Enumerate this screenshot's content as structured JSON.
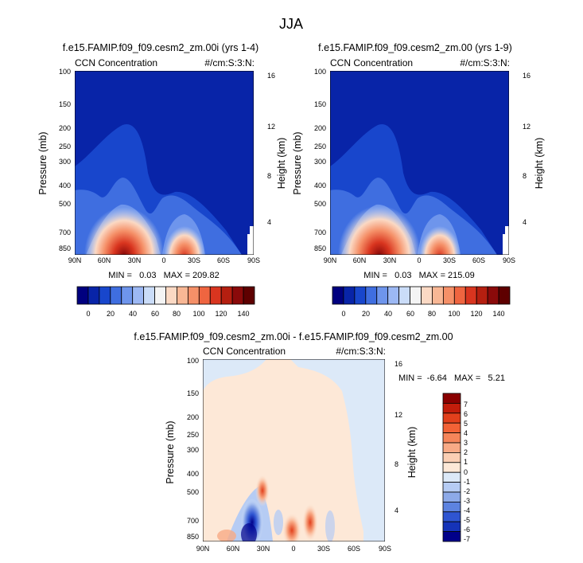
{
  "page_title": "JJA",
  "chart_data": [
    {
      "type": "heatmap",
      "title": "f.e15.FAMIP.f09_f09.cesm2_zm.00i (yrs 1-4)",
      "left_label": "CCN Concentration",
      "right_label": "#/cm:S:3:N:",
      "xlabel": "",
      "ylabel": "Pressure (mb)",
      "ylabel_right": "Height (km)",
      "x_ticks": [
        "90N",
        "60N",
        "30N",
        "0",
        "30S",
        "60S",
        "90S"
      ],
      "y_ticks": [
        "100",
        "150",
        "200",
        "250",
        "300",
        "400",
        "500",
        "700",
        "850"
      ],
      "y_ticks_right": [
        "16",
        "12",
        "8",
        "4"
      ],
      "xlim": [
        90,
        -90
      ],
      "ylim": [
        1000,
        100
      ],
      "y_scale": "log",
      "stats": "MIN =   0.03   MAX = 209.82",
      "colorbar_labels": [
        "0",
        "20",
        "40",
        "60",
        "80",
        "100",
        "120",
        "140"
      ],
      "colorbar_orientation": "horizontal"
    },
    {
      "type": "heatmap",
      "title": "f.e15.FAMIP.f09_f09.cesm2_zm.00 (yrs 1-9)",
      "left_label": "CCN Concentration",
      "right_label": "#/cm:S:3:N:",
      "xlabel": "",
      "ylabel": "Pressure (mb)",
      "ylabel_right": "Height (km)",
      "x_ticks": [
        "90N",
        "60N",
        "30N",
        "0",
        "30S",
        "60S",
        "90S"
      ],
      "y_ticks": [
        "100",
        "150",
        "200",
        "250",
        "300",
        "400",
        "500",
        "700",
        "850"
      ],
      "y_ticks_right": [
        "16",
        "12",
        "8",
        "4"
      ],
      "xlim": [
        90,
        -90
      ],
      "ylim": [
        1000,
        100
      ],
      "y_scale": "log",
      "stats": "MIN =   0.03   MAX = 215.09",
      "colorbar_labels": [
        "0",
        "20",
        "40",
        "60",
        "80",
        "100",
        "120",
        "140"
      ],
      "colorbar_orientation": "horizontal"
    },
    {
      "type": "heatmap",
      "title": "f.e15.FAMIP.f09_f09.cesm2_zm.00i - f.e15.FAMIP.f09_f09.cesm2_zm.00",
      "left_label": "CCN Concentration",
      "right_label": "#/cm:S:3:N:",
      "xlabel": "",
      "ylabel": "Pressure (mb)",
      "ylabel_right": "Height (km)",
      "x_ticks": [
        "90N",
        "60N",
        "30N",
        "0",
        "30S",
        "60S",
        "90S"
      ],
      "y_ticks": [
        "100",
        "150",
        "200",
        "250",
        "300",
        "400",
        "500",
        "700",
        "850"
      ],
      "y_ticks_right": [
        "16",
        "12",
        "8",
        "4"
      ],
      "xlim": [
        90,
        -90
      ],
      "ylim": [
        1000,
        100
      ],
      "y_scale": "log",
      "stats": "MIN =  -6.64   MAX =   5.21",
      "colorbar_labels": [
        "7",
        "6",
        "5",
        "4",
        "3",
        "2",
        "1",
        "0",
        "-1",
        "-2",
        "-3",
        "-4",
        "-5",
        "-6",
        "-7"
      ],
      "colorbar_orientation": "vertical"
    }
  ],
  "colors": {
    "abs_scale": [
      "#00007f",
      "#0824a8",
      "#1846cc",
      "#3f6ee0",
      "#6e95ec",
      "#9cb8f4",
      "#cadcf8",
      "#f4f4f4",
      "#fbd9c4",
      "#f8b795",
      "#f59068",
      "#ef6540",
      "#d9351f",
      "#b51f10",
      "#8a0a0a",
      "#5e0000"
    ],
    "diff_scale": [
      "#8a0000",
      "#c21d0b",
      "#e2401c",
      "#f26236",
      "#f5855a",
      "#f8aa86",
      "#fbcfb4",
      "#fde8d7",
      "#dce9f8",
      "#b6ccf4",
      "#8daae9",
      "#5d83e0",
      "#2f55d2",
      "#1533b8",
      "#00008a"
    ]
  }
}
